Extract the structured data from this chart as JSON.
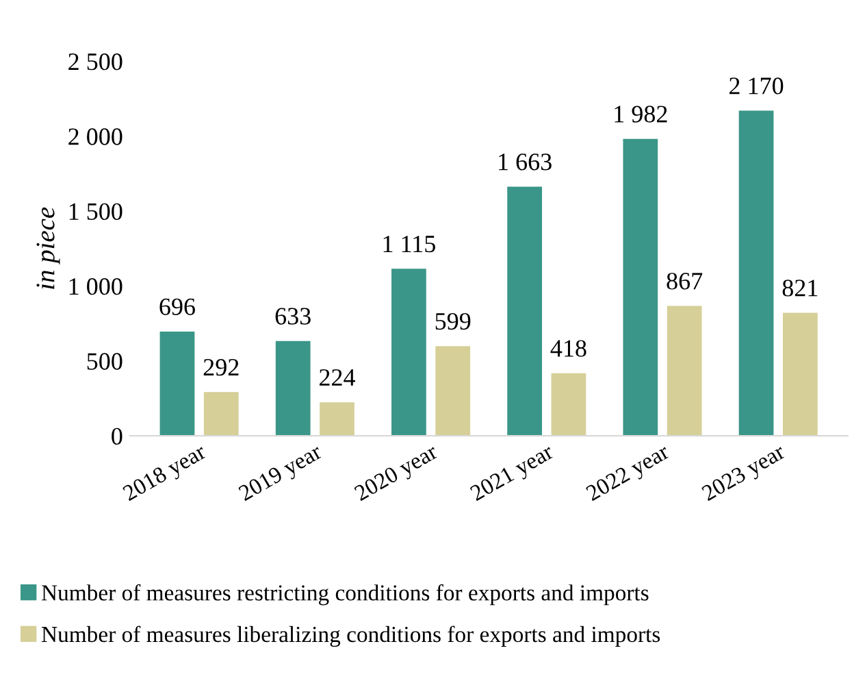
{
  "chart_data": {
    "type": "bar",
    "ylabel": "in piece",
    "categories": [
      "2018 year",
      "2019 year",
      "2020 year",
      "2021 year",
      "2022 year",
      "2023 year"
    ],
    "series": [
      {
        "name": "Number of measures restricting conditions for exports and imports",
        "color": "#3a9688",
        "values": [
          696,
          633,
          1115,
          1663,
          1982,
          2170
        ],
        "value_labels": [
          "696",
          "633",
          "1 115",
          "1 663",
          "1 982",
          "2 170"
        ]
      },
      {
        "name": "Number of measures liberalizing conditions for exports and imports",
        "color": "#d6cf98",
        "values": [
          292,
          224,
          599,
          418,
          867,
          821
        ],
        "value_labels": [
          "292",
          "224",
          "599",
          "418",
          "867",
          "821"
        ]
      }
    ],
    "ylim": [
      0,
      2500
    ],
    "yticks": [
      0,
      {
        "value": 500,
        "label": "500"
      },
      {
        "value": 1000,
        "label": "1 000"
      },
      {
        "value": 1500,
        "label": "1 500"
      },
      {
        "value": 2000,
        "label": "2 000"
      },
      {
        "value": 2500,
        "label": "2 500"
      }
    ],
    "grid": false,
    "legend": "bottom"
  }
}
